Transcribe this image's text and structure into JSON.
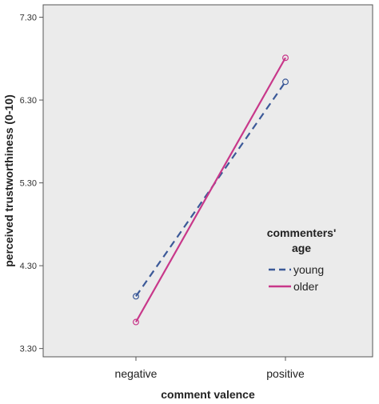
{
  "chart_data": {
    "type": "line",
    "categories": [
      "negative",
      "positive"
    ],
    "xlabel": "comment valence",
    "ylabel": "perceived trustworthiness (0-10)",
    "ylim": [
      3.2,
      7.45
    ],
    "y_ticks": [
      "3.30",
      "4.30",
      "5.30",
      "6.30",
      "7.30"
    ],
    "y_tick_values": [
      3.3,
      4.3,
      5.3,
      6.3,
      7.3
    ],
    "grid": false,
    "background_color": "#ebebeb",
    "legend": {
      "title_line1": "commenters'",
      "title_line2": "age",
      "placement": "right"
    },
    "series": [
      {
        "name": "young",
        "values": [
          3.93,
          6.52
        ],
        "color": "#3b5998",
        "dash": true
      },
      {
        "name": "older",
        "values": [
          3.62,
          6.81
        ],
        "color": "#c8388a",
        "dash": false
      }
    ]
  }
}
